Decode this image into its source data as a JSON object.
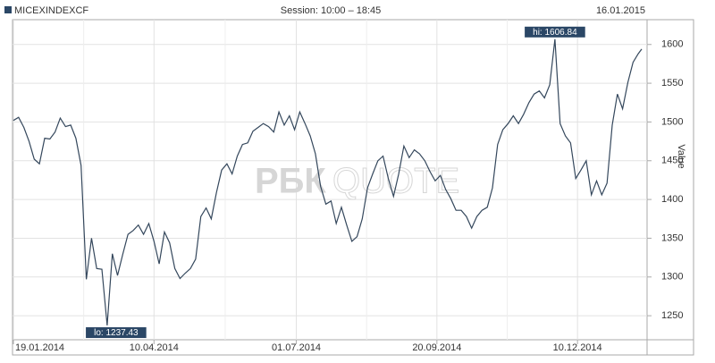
{
  "chart_data": {
    "type": "line",
    "title": "MICEXINDEXCF",
    "subtitle": "Session: 10:00 – 18:45",
    "date": "16.01.2015",
    "y_label": "Value",
    "watermark_brand": "РБК",
    "watermark_product": "QUOTE",
    "x": [
      "19.01.2014",
      "22.01.2014",
      "25.01.2014",
      "28.01.2014",
      "31.01.2014",
      "03.02.2014",
      "06.02.2014",
      "09.02.2014",
      "12.02.2014",
      "15.02.2014",
      "18.02.2014",
      "21.02.2014",
      "24.02.2014",
      "27.02.2014",
      "02.03.2014",
      "05.03.2014",
      "08.03.2014",
      "11.03.2014",
      "14.03.2014",
      "17.03.2014",
      "20.03.2014",
      "23.03.2014",
      "26.03.2014",
      "29.03.2014",
      "01.04.2014",
      "04.04.2014",
      "07.04.2014",
      "10.04.2014",
      "13.04.2014",
      "16.04.2014",
      "19.04.2014",
      "22.04.2014",
      "25.04.2014",
      "28.04.2014",
      "01.05.2014",
      "04.05.2014",
      "07.05.2014",
      "10.05.2014",
      "13.05.2014",
      "16.05.2014",
      "19.05.2014",
      "22.05.2014",
      "25.05.2014",
      "28.05.2014",
      "31.05.2014",
      "03.06.2014",
      "06.06.2014",
      "09.06.2014",
      "12.06.2014",
      "15.06.2014",
      "18.06.2014",
      "21.06.2014",
      "24.06.2014",
      "27.06.2014",
      "30.06.2014",
      "03.07.2014",
      "06.07.2014",
      "09.07.2014",
      "12.07.2014",
      "15.07.2014",
      "18.07.2014",
      "21.07.2014",
      "24.07.2014",
      "27.07.2014",
      "30.07.2014",
      "02.08.2014",
      "05.08.2014",
      "08.08.2014",
      "11.08.2014",
      "14.08.2014",
      "17.08.2014",
      "20.08.2014",
      "23.08.2014",
      "26.08.2014",
      "29.08.2014",
      "01.09.2014",
      "04.09.2014",
      "07.09.2014",
      "10.09.2014",
      "13.09.2014",
      "16.09.2014",
      "19.09.2014",
      "22.09.2014",
      "25.09.2014",
      "28.09.2014",
      "01.10.2014",
      "04.10.2014",
      "07.10.2014",
      "10.10.2014",
      "13.10.2014",
      "16.10.2014",
      "19.10.2014",
      "22.10.2014",
      "25.10.2014",
      "28.10.2014",
      "31.10.2014",
      "03.11.2014",
      "06.11.2014",
      "09.11.2014",
      "12.11.2014",
      "15.11.2014",
      "18.11.2014",
      "21.11.2014",
      "24.11.2014",
      "27.11.2014",
      "30.11.2014",
      "03.12.2014",
      "06.12.2014",
      "09.12.2014",
      "12.12.2014",
      "15.12.2014",
      "18.12.2014",
      "21.12.2014",
      "24.12.2014",
      "27.12.2014",
      "30.12.2014",
      "02.01.2015",
      "05.01.2015",
      "08.01.2015",
      "11.01.2015",
      "14.01.2015",
      "16.01.2015"
    ],
    "series": [
      {
        "name": "MICEXINDEXCF",
        "color": "#34475c",
        "values": [
          1502,
          1506,
          1493,
          1475,
          1452,
          1446,
          1479,
          1478,
          1487,
          1505,
          1494,
          1496,
          1479,
          1444,
          1297,
          1350,
          1311,
          1310,
          1237.43,
          1330,
          1302,
          1329,
          1355,
          1360,
          1367,
          1355,
          1369,
          1346,
          1317,
          1358,
          1344,
          1311,
          1298,
          1305,
          1311,
          1323,
          1378,
          1389,
          1375,
          1409,
          1438,
          1446,
          1433,
          1456,
          1471,
          1473,
          1488,
          1493,
          1498,
          1494,
          1487,
          1513,
          1496,
          1508,
          1490,
          1513,
          1498,
          1482,
          1459,
          1417,
          1394,
          1398,
          1369,
          1390,
          1367,
          1346,
          1352,
          1375,
          1415,
          1433,
          1450,
          1456,
          1427,
          1404,
          1433,
          1469,
          1454,
          1464,
          1459,
          1450,
          1436,
          1424,
          1431,
          1413,
          1401,
          1386,
          1386,
          1378,
          1363,
          1378,
          1386,
          1390,
          1415,
          1471,
          1490,
          1498,
          1508,
          1498,
          1510,
          1525,
          1536,
          1540,
          1531,
          1548,
          1606.84,
          1498,
          1482,
          1473,
          1427,
          1438,
          1450,
          1406,
          1424,
          1406,
          1421,
          1496,
          1536,
          1517,
          1551,
          1577,
          1588,
          1594
        ],
        "value_labels": [
          null,
          null,
          null,
          null,
          null,
          null,
          null,
          null,
          null,
          null,
          null,
          null,
          null,
          null,
          null,
          null,
          null,
          null,
          "lo: 1237.43",
          null,
          null,
          null,
          null,
          null,
          null,
          null,
          null,
          null,
          null,
          null,
          null,
          null,
          null,
          null,
          null,
          null,
          null,
          null,
          null,
          null,
          null,
          null,
          null,
          null,
          null,
          null,
          null,
          null,
          null,
          null,
          null,
          null,
          null,
          null,
          null,
          null,
          null,
          null,
          null,
          null,
          null,
          null,
          null,
          null,
          null,
          null,
          null,
          null,
          null,
          null,
          null,
          null,
          null,
          null,
          null,
          null,
          null,
          null,
          null,
          null,
          null,
          null,
          null,
          null,
          null,
          null,
          null,
          null,
          null,
          null,
          null,
          null,
          null,
          null,
          null,
          null,
          null,
          null,
          null,
          null,
          null,
          null,
          null,
          null,
          "hi: 1606.84",
          null,
          null,
          null,
          null,
          null,
          null,
          null,
          null,
          null,
          null,
          null,
          null,
          null,
          null,
          null,
          null,
          null
        ]
      }
    ],
    "xlim": [
      "19.01.2014",
      "16.01.2015"
    ],
    "xticks": [
      "19.01.2014",
      "10.04.2014",
      "01.07.2014",
      "20.09.2014",
      "10.12.2014"
    ],
    "ylim": [
      1219,
      1632
    ],
    "yticks": [
      1250,
      1300,
      1350,
      1400,
      1450,
      1500,
      1550,
      1600
    ],
    "grid": true,
    "label_color": "#2b4766"
  }
}
